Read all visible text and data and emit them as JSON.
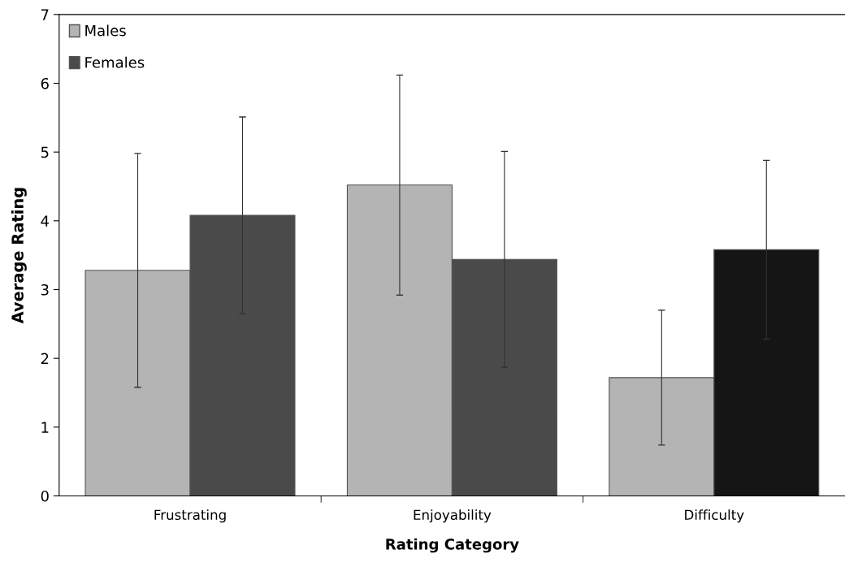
{
  "chart_data": {
    "type": "bar",
    "xlabel": "Rating Category",
    "ylabel": "Average Rating",
    "categories": [
      "Frustrating",
      "Enjoyability",
      "Difficulty"
    ],
    "series": [
      {
        "name": "Males",
        "color": "#b4b4b4",
        "values": [
          3.28,
          4.52,
          1.72
        ],
        "errors": [
          1.7,
          1.6,
          0.98
        ]
      },
      {
        "name": "Females",
        "color": "#4a4a4a",
        "colors": [
          "#4a4a4a",
          "#4a4a4a",
          "#151515"
        ],
        "values": [
          4.08,
          3.44,
          3.58
        ],
        "errors": [
          1.43,
          1.57,
          1.3
        ]
      }
    ],
    "ylim": [
      0,
      7
    ],
    "yticks": [
      0,
      1,
      2,
      3,
      4,
      5,
      6,
      7
    ],
    "grid": false,
    "legend": "top left"
  }
}
